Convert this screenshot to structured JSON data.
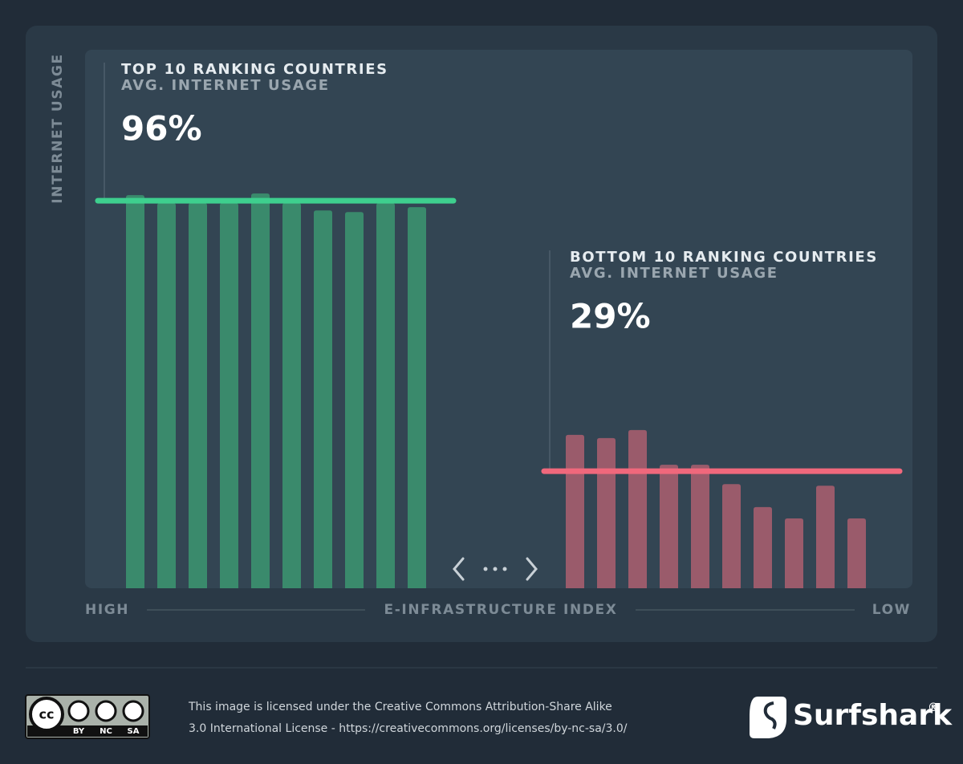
{
  "chart_data": {
    "type": "bar",
    "y_label": "INTERNET USAGE",
    "x_label": "E-INFRASTRUCTURE INDEX",
    "x_start_label": "HIGH",
    "x_end_label": "LOW",
    "ylim": [
      0,
      100
    ],
    "groups": [
      {
        "name": "TOP 10 RANKING COUNTRIES",
        "subtitle": "AVG. INTERNET USAGE",
        "color": "#3a8a6c",
        "line_color": "#3ecf8e",
        "values": [
          97.4,
          95.4,
          95.4,
          95.4,
          97.8,
          95.4,
          93.6,
          93.2,
          95.4,
          94.4
        ],
        "average": 96,
        "average_label": "96%"
      },
      {
        "name": "BOTTOM 10 RANKING COUNTRIES",
        "subtitle": "AVG. INTERNET USAGE",
        "color": "#9a5b6b",
        "line_color": "#f0687c",
        "values": [
          38,
          37.2,
          39.2,
          30.6,
          30.6,
          25.8,
          20.1,
          17.3,
          25.4,
          17.3
        ],
        "average": 29,
        "average_label": "29%"
      }
    ]
  },
  "footer": {
    "license_lines": [
      "This image is licensed under the Creative Commons Attribution-Share Alike",
      "3.0 International License - https://creativecommons.org/licenses/by-nc-sa/3.0/"
    ],
    "badge_labels": [
      "BY",
      "NC",
      "SA"
    ],
    "brand": "Surfshark",
    "brand_mark": "®"
  }
}
